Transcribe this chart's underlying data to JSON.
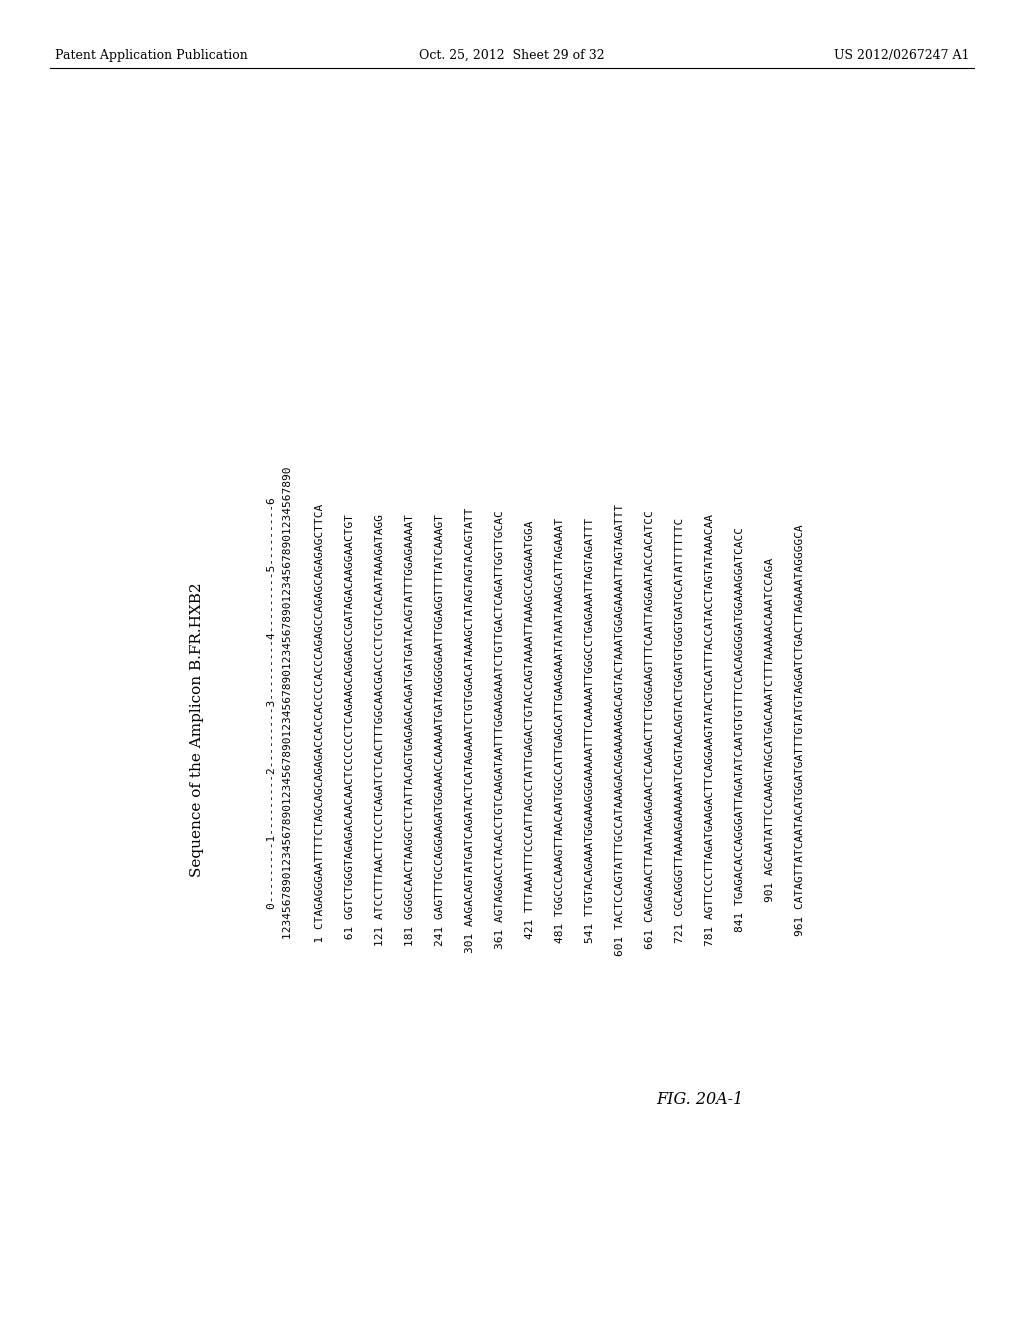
{
  "header_left": "Patent Application Publication",
  "header_center": "Oct. 25, 2012  Sheet 29 of 32",
  "header_right": "US 2012/0267247 A1",
  "title": "Sequence of the Amplicon B.FR.HXB2",
  "ruler_line1": "        0---------1---------2---------3---------4---------5---------6",
  "ruler_line2": "        1234567890123456789012345678901234567890123456789012345678901234567890",
  "sequences": [
    [
      "  1",
      "CTAGAGGGAATTTTCTAGCAGCAGAGACCACCACCCCACCCAGAGCCAGAGCAGAGAGCTTCA"
    ],
    [
      " 61",
      "GGTCTGGGTAGAGACAACAACTCCCCCCTCAGAAGCAGGAGCCGATAGACAAGGAACTGT"
    ],
    [
      "121",
      "ATCCTTTAACTTCCCTCAGATCTCACTTTGGCAACGACCCCTCGTCACAATAAAGATAGG"
    ],
    [
      "181",
      "GGGGCAACTAAGGCTCTATTACAGTGAGAGACAGATGATGATACAGTATTTGGAGAAAAT"
    ],
    [
      "241",
      "GAGTTTGCCAGGAAGATGGAAACCAAAAATGATAGGGGGAATTGGAGGTTTTATCAAAGT"
    ],
    [
      "301",
      "AAGACAGTATGATCAGATACTCATAGAAATCTGTGGACATAAAGCTATAGTAGTACAGTATT"
    ],
    [
      "361",
      "AGTAGGACCTACACCTGTCAAGATAATTTGGAAGAAATCTGTTGACTCAGATTGGTTGCAC"
    ],
    [
      "421",
      "TTTAAATTTCCCATTAGCCTATTGAGACTGTACCAGTAAAATTAAAGCCAGGAATGGA"
    ],
    [
      "481",
      "TGGCCCAAAGTTAACAATGGCCATTGAGCATTGAAGAAATATAATAAAGCATTAGAAAT"
    ],
    [
      "541",
      "TTGTACAGAAATGGAAAGGGAAAAATTTCAAAAATTGGGCCTGAGAAATTAGTAGATTT"
    ],
    [
      "601",
      "TACTCCAGTATTTGCCATAAAGACAGAAAAAGACAGTACTAAATGGAGAAAATTAGTAGATTT"
    ],
    [
      "661",
      "CAGAGAACTTAATAAGAGAACTCAAGACTTCTGGGAAGTTTCAATTAGGAATACCACATCC"
    ],
    [
      "721",
      "CGCAGGGTTAAAAGAAAAAATCAGTAACAGTACTGGATGTGGGTGATGCATATTTTTTC"
    ],
    [
      "781",
      "AGTTCCCTTAGATGAAGACTTCAGGAAGTATACTGCATTTACCATACCTAGTATAAACAA"
    ],
    [
      "841",
      "TGAGACACCAGGGATTAGATATCAATGTGTTTCCACAGGGGATGGAAAGGATCACC"
    ],
    [
      "901",
      "AGCAATATTCCAAAGTAGCATGACAAATCTTTAAAAACAAATCCAGA"
    ],
    [
      "961",
      "CATAGTTATCAATACATGGATGATTTGTATGTAGGATCTGACTTAGAAATAGGGGCA"
    ]
  ],
  "figure_label": "FIG. 20A-1",
  "bg_color": "#ffffff",
  "text_color": "#000000"
}
